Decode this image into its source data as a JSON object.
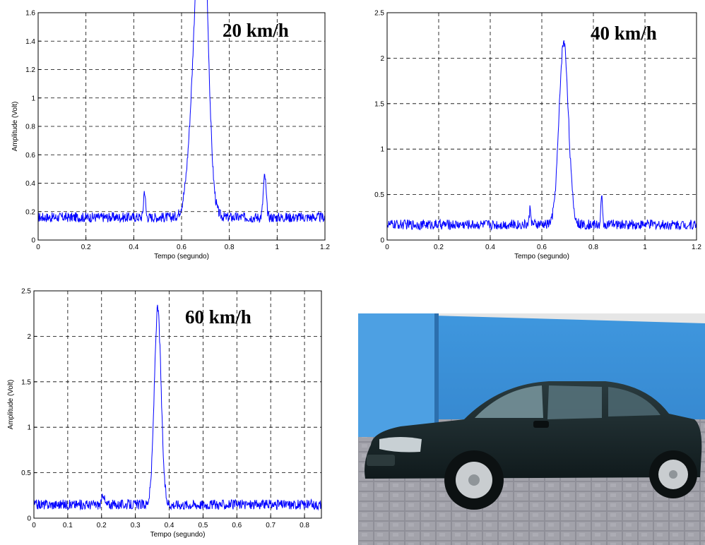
{
  "chart_data": [
    {
      "type": "line",
      "annotation": "20 km/h",
      "xlabel": "Tempo (segundo)",
      "ylabel": "Amplitude (Volt)",
      "xlim": [
        0,
        1.2
      ],
      "ylim": [
        0,
        1.6
      ],
      "xticks": [
        "0",
        "0.2",
        "0.4",
        "0.6",
        "0.8",
        "1",
        "1.2"
      ],
      "yticks": [
        "0",
        "0.2",
        "0.4",
        "0.6",
        "0.8",
        "1",
        "1.2",
        "1.4",
        "1.6"
      ],
      "grid": true,
      "color": "#0000ff",
      "baseline": 0.16,
      "peaks": [
        {
          "x": 0.445,
          "y": 0.35,
          "width": 0.004
        },
        {
          "x": 0.672,
          "y": 1.58,
          "width": 0.03
        },
        {
          "x": 0.69,
          "y": 1.4,
          "width": 0.02
        },
        {
          "x": 0.948,
          "y": 0.45,
          "width": 0.006
        }
      ]
    },
    {
      "type": "line",
      "annotation": "40 km/h",
      "xlabel": "Tempo (segundo)",
      "ylabel": "Amplitude (Volt)",
      "xlim": [
        0,
        1.2
      ],
      "ylim": [
        0,
        2.5
      ],
      "xticks": [
        "0",
        "0.2",
        "0.4",
        "0.6",
        "0.8",
        "1",
        "1.2"
      ],
      "yticks": [
        "0",
        "0.5",
        "1",
        "1.5",
        "2",
        "2.5"
      ],
      "grid": true,
      "color": "#0000ff",
      "baseline": 0.17,
      "peaks": [
        {
          "x": 0.555,
          "y": 0.36,
          "width": 0.003
        },
        {
          "x": 0.685,
          "y": 2.18,
          "width": 0.018
        },
        {
          "x": 0.832,
          "y": 0.47,
          "width": 0.003
        }
      ]
    },
    {
      "type": "line",
      "annotation": "60 km/h",
      "xlabel": "Tempo (segundo)",
      "ylabel": "Amplitude (Volt)",
      "xlim": [
        0,
        0.85
      ],
      "ylim": [
        0,
        2.5
      ],
      "xticks": [
        "0",
        "0.1",
        "0.2",
        "0.3",
        "0.4",
        "0.5",
        "0.6",
        "0.7",
        "0.8"
      ],
      "yticks": [
        "0",
        "0.5",
        "1",
        "1.5",
        "2",
        "2.5"
      ],
      "grid": true,
      "color": "#0000ff",
      "baseline": 0.15,
      "peaks": [
        {
          "x": 0.205,
          "y": 0.28,
          "width": 0.003
        },
        {
          "x": 0.366,
          "y": 2.3,
          "width": 0.01
        }
      ]
    }
  ],
  "photo": {
    "subject": "car-photo",
    "colors": {
      "wall": "#3b8fd6",
      "car": "#1c2b2e",
      "ground": "#8e8e96"
    }
  }
}
